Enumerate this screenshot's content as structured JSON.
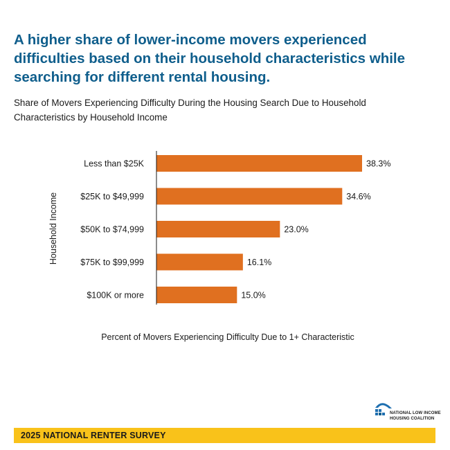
{
  "headline": "A higher share of lower-income movers experienced difficulties based on their household characteristics while searching for different rental housing.",
  "subtitle": "Share of Movers Experiencing Difficulty During the Housing Search Due to Household Characteristics by Household Income",
  "colors": {
    "headline": "#0f5e8c",
    "bar": "#e07020",
    "footer": "#f9c21a",
    "logo_blue": "#1e6fb0"
  },
  "logo": {
    "name": "NATIONAL LOW INCOME HOUSING COALITION",
    "icon": "house-roof-logo-icon"
  },
  "footer": {
    "label": "2025 NATIONAL RENTER SURVEY"
  },
  "chart_data": {
    "type": "bar",
    "orientation": "horizontal",
    "title": "Share of Movers Experiencing Difficulty During the Housing Search Due to Household Characteristics by Household Income",
    "ylabel": "Household Income",
    "xlabel": "Percent of Movers Experiencing Difficulty Due to 1+ Characteristic",
    "categories": [
      "Less than $25K",
      "$25K to $49,999",
      "$50K to $74,999",
      "$75K to $99,999",
      "$100K or more"
    ],
    "values": [
      38.3,
      34.6,
      23.0,
      16.1,
      15.0
    ],
    "data_labels": [
      "38.3%",
      "34.6%",
      "23.0%",
      "16.1%",
      "15.0%"
    ],
    "xlim": [
      0,
      38.3
    ],
    "grid": false,
    "legend": "none"
  }
}
